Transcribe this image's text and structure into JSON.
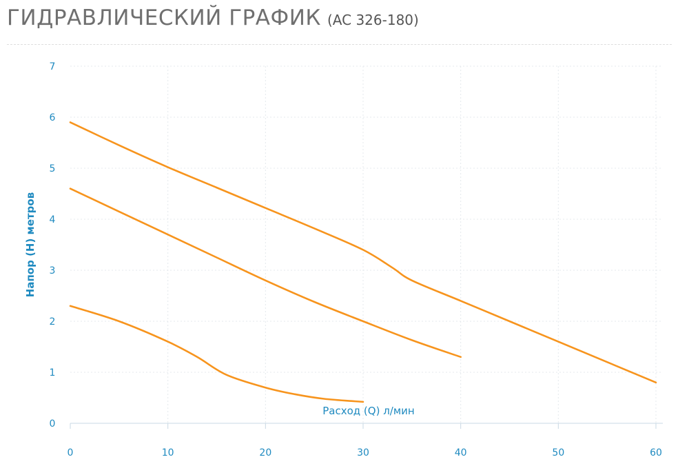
{
  "header": {
    "title": "ГИДРАВЛИЧЕСКИЙ ГРАФИК",
    "model": "(AC 326-180)"
  },
  "colors": {
    "series": "#f7941d",
    "axis_text": "#1f8ac0",
    "grid": "#e4e8ec",
    "axis_line": "#c9d8e4"
  },
  "chart_data": {
    "type": "line",
    "title": "",
    "xlabel": "Расход (Q) л/мин",
    "ylabel": "Напор (H) метров",
    "xlim": [
      0,
      60
    ],
    "ylim": [
      0,
      7
    ],
    "x_ticks": [
      "0",
      "10",
      "20",
      "30",
      "40",
      "50",
      "60"
    ],
    "y_ticks": [
      "0",
      "1",
      "2",
      "3",
      "4",
      "5",
      "6",
      "7"
    ],
    "grid": true,
    "legend": "none",
    "series": [
      {
        "points": [
          [
            0,
            5.9
          ],
          [
            5,
            5.45
          ],
          [
            10,
            5.02
          ],
          [
            15,
            4.62
          ],
          [
            20,
            4.22
          ],
          [
            25,
            3.82
          ],
          [
            30,
            3.4
          ],
          [
            33,
            3.05
          ],
          [
            35,
            2.8
          ],
          [
            40,
            2.4
          ],
          [
            45,
            2.0
          ],
          [
            50,
            1.6
          ],
          [
            55,
            1.2
          ],
          [
            60,
            0.8
          ]
        ]
      },
      {
        "points": [
          [
            0,
            4.6
          ],
          [
            5,
            4.15
          ],
          [
            10,
            3.7
          ],
          [
            15,
            3.25
          ],
          [
            20,
            2.8
          ],
          [
            25,
            2.38
          ],
          [
            30,
            2.0
          ],
          [
            35,
            1.63
          ],
          [
            40,
            1.3
          ]
        ]
      },
      {
        "points": [
          [
            0,
            2.3
          ],
          [
            5,
            2.0
          ],
          [
            10,
            1.6
          ],
          [
            13,
            1.3
          ],
          [
            16,
            0.95
          ],
          [
            20,
            0.7
          ],
          [
            23,
            0.57
          ],
          [
            26,
            0.48
          ],
          [
            30,
            0.42
          ]
        ]
      }
    ]
  }
}
